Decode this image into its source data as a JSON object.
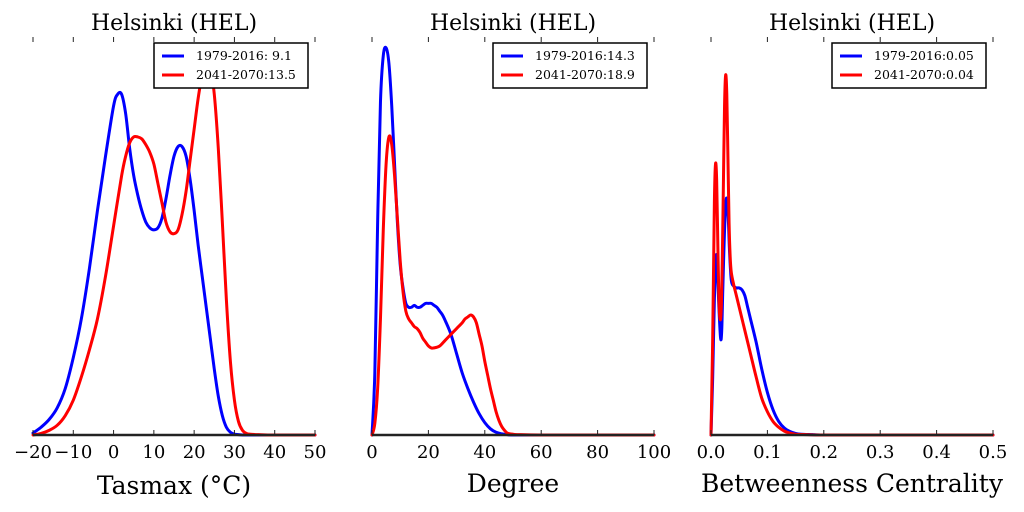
{
  "chart_data": [
    {
      "type": "line",
      "title": "Helsinki (HEL)",
      "xlabel": "Tasmax ($^\\circ$C)",
      "xlabel_display": "Tasmax (°C)",
      "ylabel": "",
      "xlim": [
        -20,
        50
      ],
      "ylim": [
        0,
        1
      ],
      "xticks": [
        -20,
        -10,
        0,
        10,
        20,
        30,
        40,
        50
      ],
      "xtick_labels": [
        "−20",
        "−10",
        "0",
        "10",
        "20",
        "30",
        "40",
        "50"
      ],
      "grid": false,
      "legend": {
        "placement": "top-right"
      },
      "series": [
        {
          "name": "1979-2016: 9.1",
          "color": "#0000ff",
          "x": [
            -20,
            -18,
            -16,
            -14,
            -12,
            -10,
            -8,
            -6,
            -4,
            -2,
            0,
            1,
            2,
            3,
            4,
            5,
            6,
            7,
            8,
            9,
            10,
            11,
            12,
            13,
            14,
            15,
            16,
            17,
            18,
            19,
            20,
            21,
            22,
            23,
            24,
            25,
            26,
            27,
            28,
            29,
            30,
            31,
            32,
            34,
            36,
            40,
            50
          ],
          "y": [
            0.005,
            0.02,
            0.04,
            0.07,
            0.12,
            0.2,
            0.3,
            0.43,
            0.58,
            0.72,
            0.85,
            0.88,
            0.88,
            0.83,
            0.74,
            0.67,
            0.62,
            0.58,
            0.55,
            0.535,
            0.53,
            0.535,
            0.56,
            0.61,
            0.67,
            0.72,
            0.745,
            0.745,
            0.72,
            0.66,
            0.58,
            0.49,
            0.41,
            0.33,
            0.25,
            0.17,
            0.1,
            0.05,
            0.02,
            0.007,
            0.002,
            0.001,
            0,
            0,
            0,
            0,
            0
          ]
        },
        {
          "name": "2041-2070:13.5",
          "color": "#ff0000",
          "x": [
            -20,
            -18,
            -16,
            -14,
            -12,
            -10,
            -8,
            -6,
            -4,
            -2,
            0,
            2,
            3,
            4,
            5,
            6,
            7,
            8,
            9,
            10,
            11,
            12,
            13,
            14,
            15,
            16,
            17,
            18,
            19,
            20,
            21,
            22,
            23,
            24,
            25,
            26,
            27,
            28,
            29,
            30,
            31,
            32,
            33,
            34,
            36,
            40,
            50
          ],
          "y": [
            0,
            0.004,
            0.012,
            0.025,
            0.05,
            0.09,
            0.15,
            0.22,
            0.3,
            0.41,
            0.54,
            0.67,
            0.72,
            0.755,
            0.77,
            0.77,
            0.765,
            0.75,
            0.73,
            0.7,
            0.65,
            0.6,
            0.55,
            0.525,
            0.52,
            0.53,
            0.57,
            0.63,
            0.71,
            0.79,
            0.87,
            0.93,
            0.96,
            0.95,
            0.88,
            0.74,
            0.55,
            0.35,
            0.19,
            0.09,
            0.035,
            0.012,
            0.004,
            0.002,
            0.001,
            0,
            0
          ]
        }
      ]
    },
    {
      "type": "line",
      "title": "Helsinki (HEL)",
      "xlabel": "Degree",
      "ylabel": "",
      "xlim": [
        0,
        100
      ],
      "ylim": [
        0,
        1
      ],
      "xticks": [
        0,
        20,
        40,
        60,
        80,
        100
      ],
      "xtick_labels": [
        "0",
        "20",
        "40",
        "60",
        "80",
        "100"
      ],
      "grid": false,
      "legend": {
        "placement": "top-right"
      },
      "series": [
        {
          "name": "1979-2016:14.3",
          "color": "#0000ff",
          "x": [
            0,
            1,
            2,
            3,
            4,
            5,
            6,
            7,
            8,
            9,
            10,
            11,
            12,
            13,
            14,
            15,
            16,
            17,
            18,
            19,
            20,
            21,
            22,
            23,
            24,
            25,
            26,
            28,
            30,
            32,
            34,
            36,
            38,
            40,
            42,
            44,
            46,
            48,
            50,
            60,
            80,
            100
          ],
          "y": [
            0.0,
            0.16,
            0.55,
            0.86,
            0.98,
            1.0,
            0.96,
            0.85,
            0.7,
            0.55,
            0.44,
            0.38,
            0.34,
            0.33,
            0.33,
            0.335,
            0.33,
            0.33,
            0.335,
            0.34,
            0.34,
            0.34,
            0.335,
            0.33,
            0.32,
            0.31,
            0.295,
            0.26,
            0.21,
            0.16,
            0.12,
            0.085,
            0.055,
            0.032,
            0.016,
            0.007,
            0.003,
            0.001,
            0,
            0,
            0,
            0
          ]
        },
        {
          "name": "2041-2070:18.9",
          "color": "#ff0000",
          "x": [
            0,
            1,
            2,
            3,
            4,
            5,
            6,
            7,
            8,
            9,
            10,
            11,
            12,
            13,
            14,
            15,
            16,
            17,
            18,
            19,
            20,
            21,
            22,
            24,
            26,
            28,
            30,
            32,
            33,
            34,
            35,
            36,
            37,
            38,
            39,
            40,
            41,
            42,
            43,
            44,
            45,
            46,
            47,
            48,
            50,
            52,
            60,
            80,
            100
          ],
          "y": [
            0.0,
            0.03,
            0.12,
            0.3,
            0.53,
            0.7,
            0.77,
            0.75,
            0.67,
            0.56,
            0.45,
            0.37,
            0.32,
            0.3,
            0.29,
            0.28,
            0.275,
            0.265,
            0.25,
            0.24,
            0.23,
            0.225,
            0.225,
            0.23,
            0.245,
            0.26,
            0.275,
            0.29,
            0.3,
            0.305,
            0.31,
            0.305,
            0.29,
            0.26,
            0.23,
            0.19,
            0.155,
            0.12,
            0.09,
            0.06,
            0.038,
            0.022,
            0.012,
            0.005,
            0.002,
            0.001,
            0,
            0,
            0
          ]
        }
      ]
    },
    {
      "type": "line",
      "title": "Helsinki (HEL)",
      "xlabel": "Betweenness Centrality",
      "ylabel": "",
      "xlim": [
        0.0,
        0.5
      ],
      "ylim": [
        0,
        1
      ],
      "xticks": [
        0.0,
        0.1,
        0.2,
        0.3,
        0.4,
        0.5
      ],
      "xtick_labels": [
        "0.0",
        "0.1",
        "0.2",
        "0.3",
        "0.4",
        "0.5"
      ],
      "grid": false,
      "legend": {
        "placement": "top-right"
      },
      "series": [
        {
          "name": "1979-2016:0.05",
          "color": "#0000ff",
          "x": [
            0.0,
            0.003,
            0.006,
            0.009,
            0.011,
            0.014,
            0.017,
            0.019,
            0.021,
            0.024,
            0.027,
            0.03,
            0.033,
            0.036,
            0.04,
            0.045,
            0.05,
            0.055,
            0.06,
            0.065,
            0.07,
            0.08,
            0.09,
            0.1,
            0.11,
            0.12,
            0.13,
            0.14,
            0.15,
            0.16,
            0.18,
            0.2,
            0.3,
            0.4,
            0.5
          ],
          "y": [
            0.0,
            0.15,
            0.35,
            0.46,
            0.44,
            0.33,
            0.25,
            0.27,
            0.38,
            0.53,
            0.61,
            0.58,
            0.47,
            0.4,
            0.385,
            0.38,
            0.38,
            0.375,
            0.36,
            0.33,
            0.3,
            0.24,
            0.17,
            0.11,
            0.065,
            0.035,
            0.018,
            0.009,
            0.004,
            0.002,
            0.001,
            0,
            0,
            0,
            0
          ]
        },
        {
          "name": "2041-2070:0.04",
          "color": "#ff0000",
          "x": [
            0.0,
            0.003,
            0.006,
            0.008,
            0.01,
            0.012,
            0.014,
            0.016,
            0.018,
            0.02,
            0.022,
            0.024,
            0.026,
            0.028,
            0.03,
            0.032,
            0.034,
            0.036,
            0.04,
            0.045,
            0.05,
            0.055,
            0.06,
            0.07,
            0.08,
            0.09,
            0.1,
            0.11,
            0.12,
            0.13,
            0.14,
            0.15,
            0.17,
            0.2,
            0.3,
            0.4,
            0.5
          ],
          "y": [
            0.0,
            0.25,
            0.6,
            0.7,
            0.66,
            0.5,
            0.35,
            0.3,
            0.32,
            0.45,
            0.65,
            0.85,
            0.93,
            0.88,
            0.72,
            0.55,
            0.46,
            0.42,
            0.39,
            0.36,
            0.33,
            0.3,
            0.27,
            0.21,
            0.15,
            0.095,
            0.06,
            0.035,
            0.02,
            0.01,
            0.005,
            0.002,
            0.001,
            0,
            0,
            0,
            0
          ]
        }
      ]
    }
  ]
}
